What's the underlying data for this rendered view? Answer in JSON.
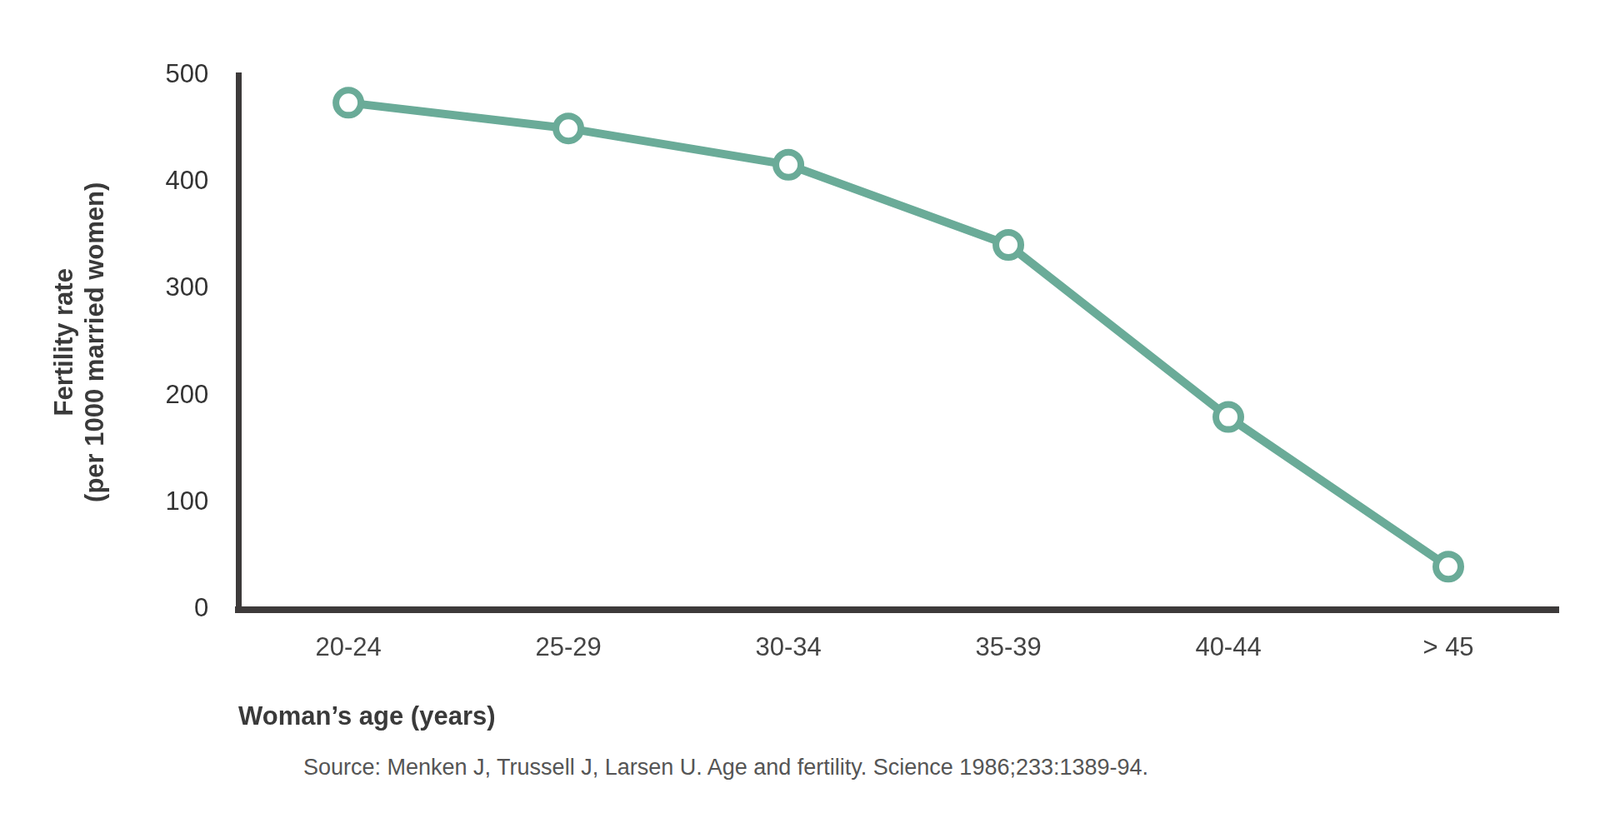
{
  "chart_data": {
    "type": "line",
    "categories": [
      "20-24",
      "25-29",
      "30-34",
      "35-39",
      "40-44",
      "> 45"
    ],
    "values": [
      474,
      450,
      416,
      341,
      180,
      40
    ],
    "color": "#6aab98",
    "x_label": "Woman’s age (years)",
    "y_label": [
      "Fertility rate",
      "(per 1000 married women)"
    ],
    "ylim": [
      0,
      500
    ],
    "yticks": [
      0,
      100,
      200,
      300,
      400,
      500
    ],
    "grid": false,
    "marker": "circle",
    "line_style": "solid",
    "source": "Source: Menken J, Trussell J, Larsen U. Age and fertility. Science 1986;233:1389-94."
  }
}
